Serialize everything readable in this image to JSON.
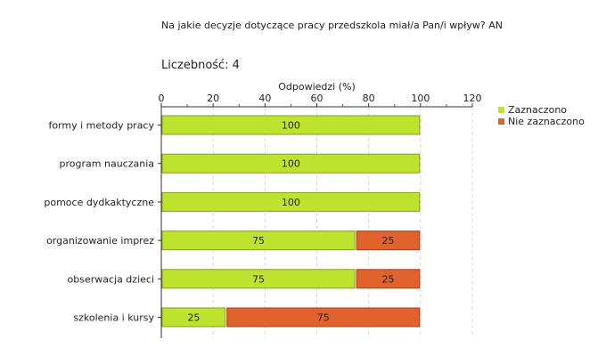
{
  "header": {
    "question": "Na jakie decyzje dotyczące pracy przedszkola miał/a Pan/i wpływ? AN",
    "count_label": "Liczebność:",
    "count_value": "4"
  },
  "colors": {
    "zaznaczono": "#bfe22e",
    "nie_zaznaczono": "#e0622d",
    "grid": "#d8d8d8",
    "axis": "#333333"
  },
  "chart_data": {
    "type": "bar",
    "orientation": "horizontal",
    "stacked": true,
    "xlabel": "Odpowiedzi (%)",
    "ylabel": "",
    "xlim": [
      0,
      120
    ],
    "xticks": [
      "0",
      "20",
      "40",
      "60",
      "80",
      "100",
      "120"
    ],
    "grid": true,
    "legend_position": "right",
    "categories": [
      "formy i metody pracy",
      "program nauczania",
      "pomoce dydkaktyczne",
      "organizowanie imprez",
      "obserwacja dzieci",
      "szkolenia i kursy"
    ],
    "series": [
      {
        "name": "Zaznaczono",
        "values": [
          100,
          100,
          100,
          75,
          75,
          25
        ]
      },
      {
        "name": "Nie zaznaczono",
        "values": [
          0,
          0,
          0,
          25,
          25,
          75
        ]
      }
    ]
  }
}
